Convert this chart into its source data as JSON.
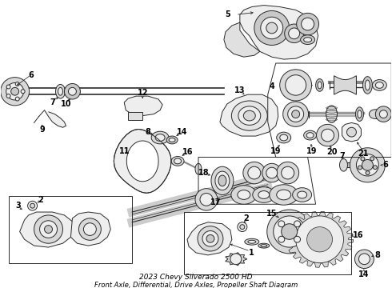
{
  "bg_color": "#ffffff",
  "fig_width": 4.9,
  "fig_height": 3.6,
  "dpi": 100,
  "line_color": "#2a2a2a",
  "gray_fill": "#d8d8d8",
  "light_fill": "#eeeeee",
  "mid_fill": "#c8c8c8",
  "title_line1": "2023 Chevy Silverado 2500 HD",
  "title_line2": "Front Axle, Differential, Drive Axles, Propeller Shaft Diagram",
  "title_fontsize": 6.5
}
